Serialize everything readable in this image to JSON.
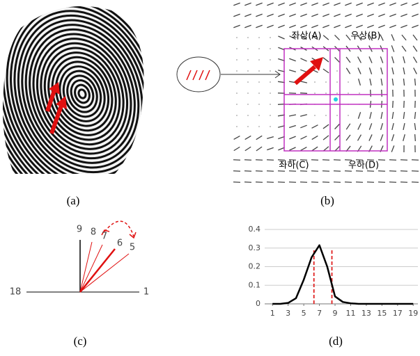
{
  "panels": {
    "a": {
      "caption": "(a)"
    },
    "b": {
      "caption": "(b)",
      "labels": [
        "좌상(A)",
        "우상(B)",
        "좌하(C)",
        "우하(D)"
      ]
    },
    "c": {
      "caption": "(c)",
      "labels": [
        "9",
        "8",
        "7",
        "6",
        "5",
        "18",
        "1"
      ]
    },
    "d": {
      "caption": "(d)"
    }
  },
  "chart_data": {
    "type": "line",
    "x": [
      1,
      2,
      3,
      4,
      5,
      6,
      7,
      8,
      9,
      10,
      11,
      12,
      13,
      14,
      15,
      16,
      17,
      18,
      19
    ],
    "series": [
      {
        "color": "#000000",
        "values": [
          0,
          0,
          0.005,
          0.03,
          0.13,
          0.25,
          0.315,
          0.2,
          0.04,
          0.01,
          0.003,
          0,
          0,
          0,
          0,
          0,
          0,
          0,
          0
        ]
      }
    ],
    "xlim": [
      0,
      19.6
    ],
    "xticks": [
      1,
      3,
      5,
      7,
      9,
      11,
      13,
      15,
      17,
      19
    ],
    "ylim": [
      0,
      0.4
    ],
    "yticks": [
      0,
      0.1,
      0.2,
      0.3,
      0.4
    ],
    "grid": true,
    "reference_lines": {
      "x": [
        6.3,
        8.6
      ],
      "color": "#e02020"
    }
  }
}
